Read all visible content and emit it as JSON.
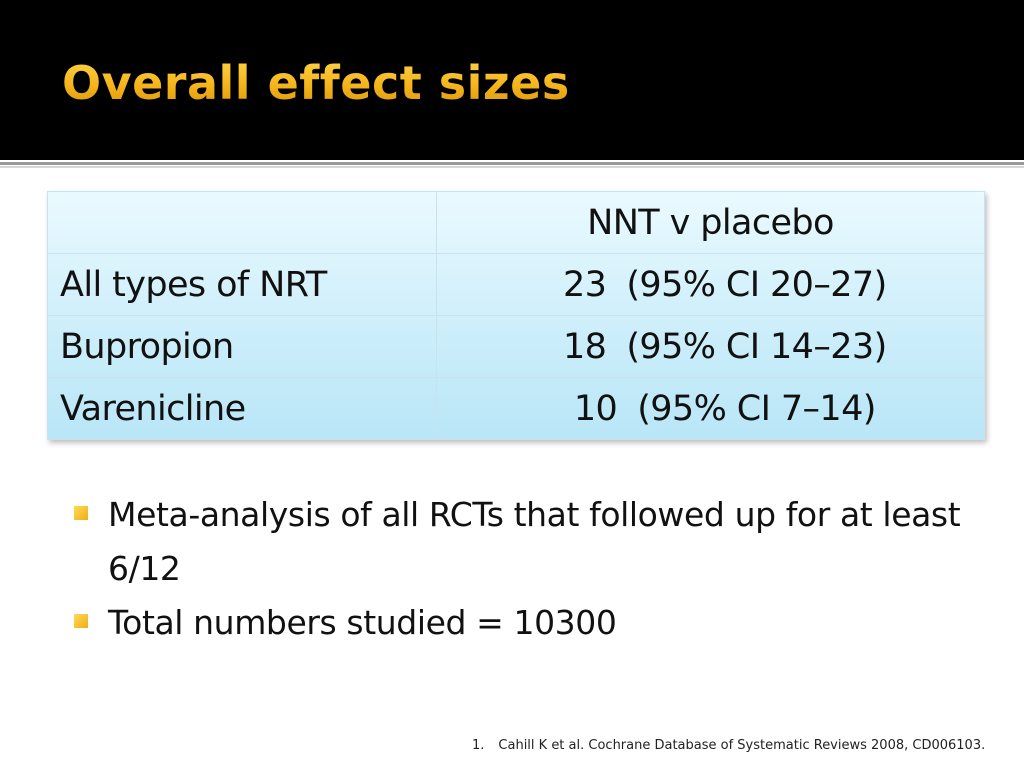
{
  "title": "Overall effect sizes",
  "table": {
    "header": [
      "",
      "NNT v placebo"
    ],
    "rows": [
      {
        "label": "All types of NRT",
        "nnt": "23",
        "ci": "(95% CI 20–27)"
      },
      {
        "label": "Bupropion",
        "nnt": "18",
        "ci": "(95% CI 14–23)"
      },
      {
        "label": "Varenicline",
        "nnt": "10",
        "ci": "(95% CI 7–14)"
      }
    ]
  },
  "bullets": [
    "Meta-analysis of all RCTs that followed up for at least 6/12",
    "Total numbers studied = 10300"
  ],
  "footnote": {
    "number": "1.",
    "text": "Cahill K et al. Cochrane Database of Systematic Reviews 2008, CD006103."
  },
  "colors": {
    "title": "#f4b41a",
    "header_background": "#000000",
    "bullet": "#f0ae14",
    "table_fill": "#cdeefa"
  }
}
